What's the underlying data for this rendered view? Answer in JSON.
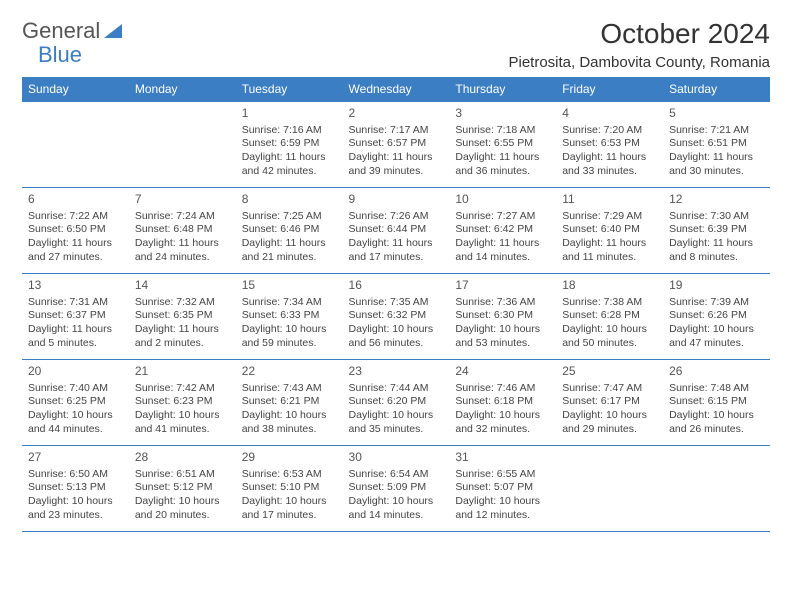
{
  "logo": {
    "text_gray": "General",
    "text_blue": "Blue"
  },
  "title": "October 2024",
  "location": "Pietrosita, Dambovita County, Romania",
  "colors": {
    "header_bg": "#3b7ec4",
    "header_text": "#ffffff",
    "cell_border": "#3b7ec4",
    "body_text": "#444444",
    "title_text": "#333333",
    "logo_gray": "#555555",
    "logo_blue": "#3b7ec4",
    "background": "#ffffff"
  },
  "typography": {
    "title_fontsize": 28,
    "location_fontsize": 15,
    "dayheader_fontsize": 12,
    "daynum_fontsize": 12,
    "cell_fontsize": 10.5,
    "font_family": "Arial"
  },
  "day_headers": [
    "Sunday",
    "Monday",
    "Tuesday",
    "Wednesday",
    "Thursday",
    "Friday",
    "Saturday"
  ],
  "weeks": [
    [
      null,
      null,
      {
        "n": "1",
        "sr": "7:16 AM",
        "ss": "6:59 PM",
        "dl": "11 hours and 42 minutes."
      },
      {
        "n": "2",
        "sr": "7:17 AM",
        "ss": "6:57 PM",
        "dl": "11 hours and 39 minutes."
      },
      {
        "n": "3",
        "sr": "7:18 AM",
        "ss": "6:55 PM",
        "dl": "11 hours and 36 minutes."
      },
      {
        "n": "4",
        "sr": "7:20 AM",
        "ss": "6:53 PM",
        "dl": "11 hours and 33 minutes."
      },
      {
        "n": "5",
        "sr": "7:21 AM",
        "ss": "6:51 PM",
        "dl": "11 hours and 30 minutes."
      }
    ],
    [
      {
        "n": "6",
        "sr": "7:22 AM",
        "ss": "6:50 PM",
        "dl": "11 hours and 27 minutes."
      },
      {
        "n": "7",
        "sr": "7:24 AM",
        "ss": "6:48 PM",
        "dl": "11 hours and 24 minutes."
      },
      {
        "n": "8",
        "sr": "7:25 AM",
        "ss": "6:46 PM",
        "dl": "11 hours and 21 minutes."
      },
      {
        "n": "9",
        "sr": "7:26 AM",
        "ss": "6:44 PM",
        "dl": "11 hours and 17 minutes."
      },
      {
        "n": "10",
        "sr": "7:27 AM",
        "ss": "6:42 PM",
        "dl": "11 hours and 14 minutes."
      },
      {
        "n": "11",
        "sr": "7:29 AM",
        "ss": "6:40 PM",
        "dl": "11 hours and 11 minutes."
      },
      {
        "n": "12",
        "sr": "7:30 AM",
        "ss": "6:39 PM",
        "dl": "11 hours and 8 minutes."
      }
    ],
    [
      {
        "n": "13",
        "sr": "7:31 AM",
        "ss": "6:37 PM",
        "dl": "11 hours and 5 minutes."
      },
      {
        "n": "14",
        "sr": "7:32 AM",
        "ss": "6:35 PM",
        "dl": "11 hours and 2 minutes."
      },
      {
        "n": "15",
        "sr": "7:34 AM",
        "ss": "6:33 PM",
        "dl": "10 hours and 59 minutes."
      },
      {
        "n": "16",
        "sr": "7:35 AM",
        "ss": "6:32 PM",
        "dl": "10 hours and 56 minutes."
      },
      {
        "n": "17",
        "sr": "7:36 AM",
        "ss": "6:30 PM",
        "dl": "10 hours and 53 minutes."
      },
      {
        "n": "18",
        "sr": "7:38 AM",
        "ss": "6:28 PM",
        "dl": "10 hours and 50 minutes."
      },
      {
        "n": "19",
        "sr": "7:39 AM",
        "ss": "6:26 PM",
        "dl": "10 hours and 47 minutes."
      }
    ],
    [
      {
        "n": "20",
        "sr": "7:40 AM",
        "ss": "6:25 PM",
        "dl": "10 hours and 44 minutes."
      },
      {
        "n": "21",
        "sr": "7:42 AM",
        "ss": "6:23 PM",
        "dl": "10 hours and 41 minutes."
      },
      {
        "n": "22",
        "sr": "7:43 AM",
        "ss": "6:21 PM",
        "dl": "10 hours and 38 minutes."
      },
      {
        "n": "23",
        "sr": "7:44 AM",
        "ss": "6:20 PM",
        "dl": "10 hours and 35 minutes."
      },
      {
        "n": "24",
        "sr": "7:46 AM",
        "ss": "6:18 PM",
        "dl": "10 hours and 32 minutes."
      },
      {
        "n": "25",
        "sr": "7:47 AM",
        "ss": "6:17 PM",
        "dl": "10 hours and 29 minutes."
      },
      {
        "n": "26",
        "sr": "7:48 AM",
        "ss": "6:15 PM",
        "dl": "10 hours and 26 minutes."
      }
    ],
    [
      {
        "n": "27",
        "sr": "6:50 AM",
        "ss": "5:13 PM",
        "dl": "10 hours and 23 minutes."
      },
      {
        "n": "28",
        "sr": "6:51 AM",
        "ss": "5:12 PM",
        "dl": "10 hours and 20 minutes."
      },
      {
        "n": "29",
        "sr": "6:53 AM",
        "ss": "5:10 PM",
        "dl": "10 hours and 17 minutes."
      },
      {
        "n": "30",
        "sr": "6:54 AM",
        "ss": "5:09 PM",
        "dl": "10 hours and 14 minutes."
      },
      {
        "n": "31",
        "sr": "6:55 AM",
        "ss": "5:07 PM",
        "dl": "10 hours and 12 minutes."
      },
      null,
      null
    ]
  ],
  "labels": {
    "sunrise": "Sunrise:",
    "sunset": "Sunset:",
    "daylight": "Daylight:"
  }
}
